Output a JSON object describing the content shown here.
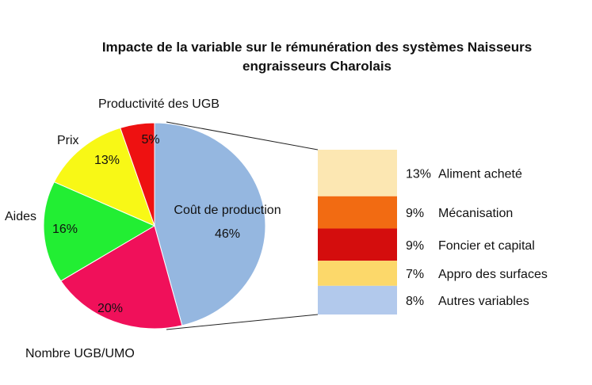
{
  "chart_data": [
    {
      "type": "pie",
      "title_line1": "Impacte de la variable sur le rémunération des systèmes Naisseurs",
      "title_line2": "engraisseurs Charolais",
      "slices": [
        {
          "label": "Coût de production",
          "value": 46,
          "value_label": "46%",
          "color": "#95b7e0"
        },
        {
          "label": "Nombre UGB/UMO",
          "value": 20,
          "value_label": "20%",
          "color": "#f0105a"
        },
        {
          "label": "Aides",
          "value": 16,
          "value_label": "16%",
          "color": "#22ee33"
        },
        {
          "label": "Prix",
          "value": 13,
          "value_label": "13%",
          "color": "#f8f816"
        },
        {
          "label": "Productivité des UGB",
          "value": 5,
          "value_label": "5%",
          "color": "#ee1111"
        }
      ]
    },
    {
      "type": "bar",
      "stacked": true,
      "segments": [
        {
          "label": "Aliment acheté",
          "value": 13,
          "value_label": "13%",
          "color": "#fce7b2"
        },
        {
          "label": "Mécanisation",
          "value": 9,
          "value_label": "9%",
          "color": "#f26b12"
        },
        {
          "label": "Foncier et capital",
          "value": 9,
          "value_label": "9%",
          "color": "#d40d0d"
        },
        {
          "label": "Appro des surfaces",
          "value": 7,
          "value_label": "7%",
          "color": "#fcd86a"
        },
        {
          "label": "Autres variables",
          "value": 8,
          "value_label": "8%",
          "color": "#b2c9ec"
        }
      ]
    }
  ]
}
